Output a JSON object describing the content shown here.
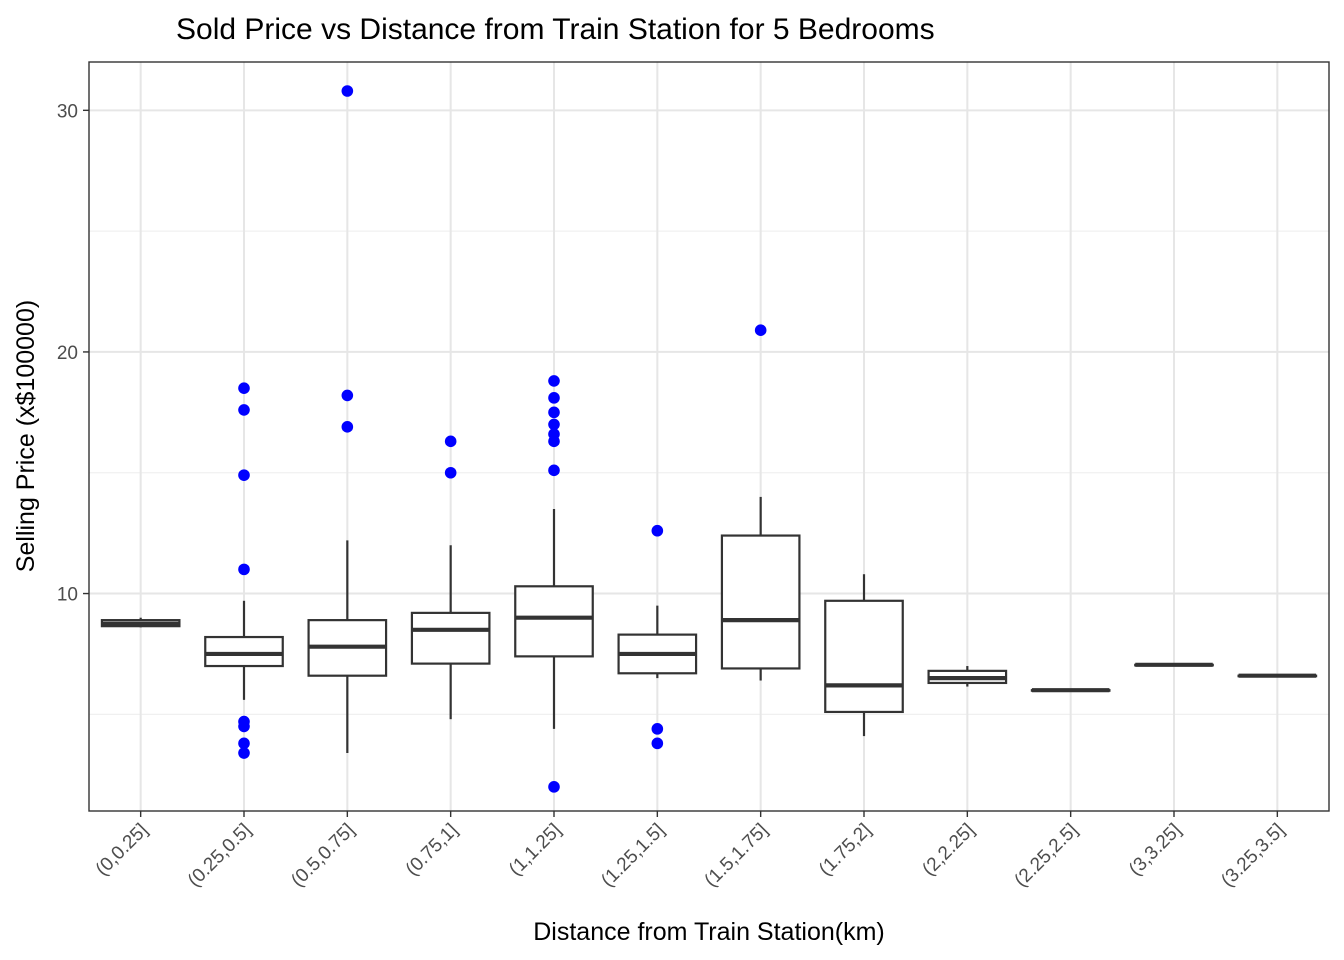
{
  "chart_data": {
    "type": "boxplot",
    "title": "Sold Price vs Distance from Train Station for 5 Bedrooms",
    "xlabel": "Distance from Train Station(km)",
    "ylabel": "Selling Price (x$100000)",
    "ylim": [
      1.0,
      32.0
    ],
    "yticks": [
      10,
      20,
      30
    ],
    "grid": true,
    "outlier_color": "#0000ff",
    "box_color": "#333333",
    "categories": [
      "(0,0.25]",
      "(0.25,0.5]",
      "(0.5,0.75]",
      "(0.75,1]",
      "(1,1.25]",
      "(1.25,1.5]",
      "(1.5,1.75]",
      "(1.75,2]",
      "(2,2.25]",
      "(2.25,2.5]",
      "(3,3.25]",
      "(3.25,3.5]"
    ],
    "boxes": [
      {
        "whisker_low": 8.6,
        "q1": 8.65,
        "median": 8.75,
        "q3": 8.9,
        "whisker_high": 9.0,
        "outliers": []
      },
      {
        "whisker_low": 5.6,
        "q1": 7.0,
        "median": 7.5,
        "q3": 8.2,
        "whisker_high": 9.7,
        "outliers": [
          18.5,
          17.6,
          14.9,
          11.0,
          4.7,
          4.5,
          3.8,
          3.4
        ]
      },
      {
        "whisker_low": 3.4,
        "q1": 6.6,
        "median": 7.8,
        "q3": 8.9,
        "whisker_high": 12.2,
        "outliers": [
          30.8,
          18.2,
          16.9
        ]
      },
      {
        "whisker_low": 4.8,
        "q1": 7.1,
        "median": 8.5,
        "q3": 9.2,
        "whisker_high": 12.0,
        "outliers": [
          16.3,
          15.0
        ]
      },
      {
        "whisker_low": 4.4,
        "q1": 7.4,
        "median": 9.0,
        "q3": 10.3,
        "whisker_high": 13.5,
        "outliers": [
          18.8,
          18.1,
          17.5,
          17.0,
          16.6,
          16.3,
          15.1,
          2.0
        ]
      },
      {
        "whisker_low": 6.5,
        "q1": 6.7,
        "median": 7.5,
        "q3": 8.3,
        "whisker_high": 9.5,
        "outliers": [
          12.6,
          4.4,
          3.8
        ]
      },
      {
        "whisker_low": 6.4,
        "q1": 6.9,
        "median": 8.9,
        "q3": 12.4,
        "whisker_high": 14.0,
        "outliers": [
          20.9
        ]
      },
      {
        "whisker_low": 4.1,
        "q1": 5.1,
        "median": 6.2,
        "q3": 9.7,
        "whisker_high": 10.8,
        "outliers": []
      },
      {
        "whisker_low": 6.15,
        "q1": 6.3,
        "median": 6.5,
        "q3": 6.8,
        "whisker_high": 7.0,
        "outliers": []
      },
      {
        "whisker_low": 6.0,
        "q1": 6.0,
        "median": 6.0,
        "q3": 6.0,
        "whisker_high": 6.0,
        "outliers": []
      },
      {
        "whisker_low": 7.05,
        "q1": 7.05,
        "median": 7.05,
        "q3": 7.05,
        "whisker_high": 7.05,
        "outliers": []
      },
      {
        "whisker_low": 6.6,
        "q1": 6.6,
        "median": 6.6,
        "q3": 6.6,
        "whisker_high": 6.6,
        "outliers": []
      }
    ]
  }
}
